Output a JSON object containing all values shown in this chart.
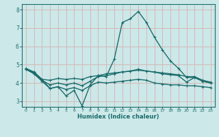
{
  "background_color": "#cce8e8",
  "grid_color": "#d4b8b8",
  "line_color": "#1a6b6b",
  "xlabel": "Humidex (Indice chaleur)",
  "ylim": [
    2.7,
    8.3
  ],
  "xlim": [
    -0.5,
    23.5
  ],
  "yticks": [
    3,
    4,
    5,
    6,
    7,
    8
  ],
  "xticks": [
    0,
    1,
    2,
    3,
    4,
    5,
    6,
    7,
    8,
    9,
    10,
    11,
    12,
    13,
    14,
    15,
    16,
    17,
    18,
    19,
    20,
    21,
    22,
    23
  ],
  "line1_x": [
    0,
    1,
    2,
    3,
    4,
    5,
    6,
    7,
    8,
    9,
    10,
    11,
    12,
    13,
    14,
    15,
    16,
    17,
    18,
    19,
    20,
    21,
    22,
    23
  ],
  "line1_y": [
    4.8,
    4.6,
    4.2,
    3.7,
    3.8,
    3.3,
    3.6,
    2.75,
    3.9,
    4.4,
    4.35,
    5.3,
    7.3,
    7.5,
    7.9,
    7.3,
    6.5,
    5.8,
    5.2,
    4.8,
    4.3,
    4.3,
    4.1,
    4.0
  ],
  "line2_x": [
    0,
    1,
    2,
    3,
    4,
    5,
    6,
    7,
    8,
    9,
    10,
    11,
    12,
    13,
    14,
    15,
    16,
    17,
    18,
    19,
    20,
    21,
    22,
    23
  ],
  "line2_y": [
    4.75,
    4.6,
    4.2,
    4.15,
    4.25,
    4.2,
    4.25,
    4.2,
    4.35,
    4.4,
    4.5,
    4.55,
    4.6,
    4.65,
    4.7,
    4.65,
    4.6,
    4.55,
    4.5,
    4.45,
    4.35,
    4.35,
    4.15,
    4.05
  ],
  "line3_x": [
    0,
    1,
    2,
    3,
    4,
    5,
    6,
    7,
    8,
    9,
    10,
    11,
    12,
    13,
    14,
    15,
    16,
    17,
    18,
    19,
    20,
    21,
    22,
    23
  ],
  "line3_y": [
    4.75,
    4.55,
    4.15,
    3.9,
    4.0,
    3.9,
    4.0,
    3.85,
    4.1,
    4.35,
    4.4,
    4.5,
    4.6,
    4.65,
    4.75,
    4.65,
    4.6,
    4.5,
    4.45,
    4.4,
    4.05,
    4.3,
    4.1,
    4.0
  ],
  "line4_x": [
    0,
    1,
    2,
    3,
    4,
    5,
    6,
    7,
    8,
    9,
    10,
    11,
    12,
    13,
    14,
    15,
    16,
    17,
    18,
    19,
    20,
    21,
    22,
    23
  ],
  "line4_y": [
    4.75,
    4.5,
    4.1,
    3.7,
    3.8,
    3.65,
    3.75,
    3.6,
    3.85,
    4.05,
    4.0,
    4.05,
    4.1,
    4.15,
    4.2,
    4.15,
    4.0,
    3.95,
    3.9,
    3.9,
    3.85,
    3.85,
    3.8,
    3.75
  ]
}
